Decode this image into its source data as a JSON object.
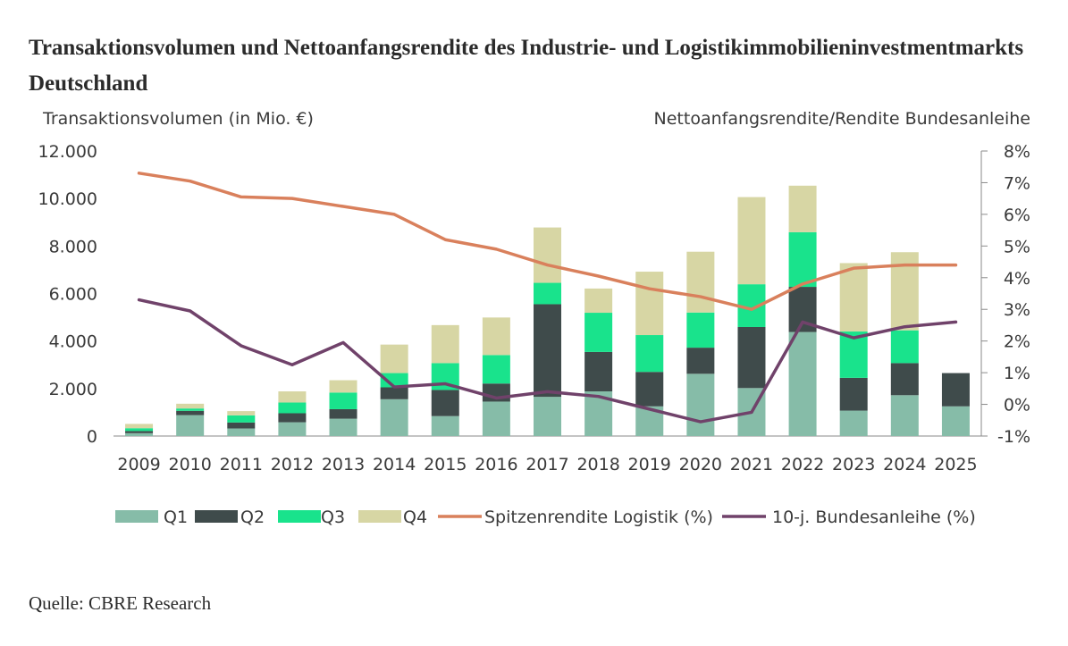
{
  "chart_data": {
    "type": "bar",
    "title": "Transaktionsvolumen und Nettoanfangsrendite des Industrie- und Logistikimmobilieninvestmentmarkts Deutschland",
    "ylabel": "Transaktionsvolumen (in Mio. €)",
    "y2label": "Nettoanfangsrendite/Rendite Bundesanleihe",
    "ylim": [
      0,
      12000
    ],
    "y2lim": [
      -1,
      8
    ],
    "yticks": [
      "0",
      "2.000",
      "4.000",
      "6.000",
      "8.000",
      "10.000",
      "12.000"
    ],
    "y2ticks": [
      "-1%",
      "0%",
      "1%",
      "2%",
      "3%",
      "4%",
      "5%",
      "6%",
      "7%",
      "8%"
    ],
    "categories": [
      "2009",
      "2010",
      "2011",
      "2012",
      "2013",
      "2014",
      "2015",
      "2016",
      "2017",
      "2018",
      "2019",
      "2020",
      "2021",
      "2022",
      "2023",
      "2024",
      "2025"
    ],
    "stacked": true,
    "series": [
      {
        "name": "Q1",
        "type": "bar",
        "color": "#86bca8",
        "values": [
          120,
          880,
          320,
          580,
          730,
          1550,
          840,
          1450,
          1650,
          1880,
          1250,
          2620,
          2020,
          4380,
          1070,
          1720,
          1250
        ]
      },
      {
        "name": "Q2",
        "type": "bar",
        "color": "#3f4b4b",
        "values": [
          90,
          180,
          250,
          380,
          400,
          500,
          1100,
          760,
          3900,
          1660,
          1450,
          1100,
          2570,
          1900,
          1380,
          1350,
          1400
        ]
      },
      {
        "name": "Q3",
        "type": "bar",
        "color": "#19e38c",
        "values": [
          120,
          100,
          300,
          450,
          700,
          600,
          1130,
          1200,
          900,
          1650,
          1550,
          1480,
          1800,
          2300,
          1950,
          1380,
          0
        ]
      },
      {
        "name": "Q4",
        "type": "bar",
        "color": "#d7d6a4",
        "values": [
          180,
          200,
          180,
          470,
          520,
          1200,
          1600,
          1580,
          2330,
          1020,
          2670,
          2560,
          3670,
          1960,
          2880,
          3290,
          0
        ]
      },
      {
        "name": "Spitzenrendite Logistik (%)",
        "type": "line",
        "axis": "right",
        "color": "#d9805c",
        "values": [
          7.3,
          7.05,
          6.55,
          6.5,
          6.25,
          6.0,
          5.2,
          4.9,
          4.4,
          4.05,
          3.65,
          3.4,
          3.0,
          3.8,
          4.3,
          4.4,
          4.4
        ]
      },
      {
        "name": "10-j. Bundesanleihe (%)",
        "type": "line",
        "axis": "right",
        "color": "#70426a",
        "values": [
          3.3,
          2.95,
          1.85,
          1.25,
          1.95,
          0.55,
          0.65,
          0.2,
          0.4,
          0.25,
          -0.15,
          -0.55,
          -0.25,
          2.6,
          2.1,
          2.45,
          2.6
        ]
      }
    ],
    "legend": "bottom",
    "grid": false
  },
  "source": "Quelle: CBRE Research"
}
